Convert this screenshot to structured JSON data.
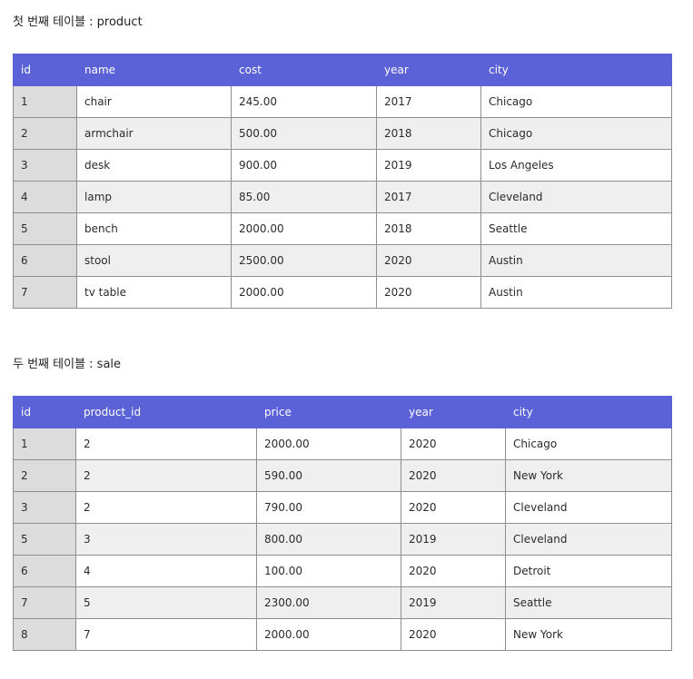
{
  "product_section": {
    "caption": "첫 번째 테이블 : product",
    "headers": [
      "id",
      "name",
      "cost",
      "year",
      "city"
    ],
    "rows": [
      [
        "1",
        "chair",
        "245.00",
        "2017",
        "Chicago"
      ],
      [
        "2",
        "armchair",
        "500.00",
        "2018",
        "Chicago"
      ],
      [
        "3",
        "desk",
        "900.00",
        "2019",
        "Los Angeles"
      ],
      [
        "4",
        "lamp",
        "85.00",
        "2017",
        "Cleveland"
      ],
      [
        "5",
        "bench",
        "2000.00",
        "2018",
        "Seattle"
      ],
      [
        "6",
        "stool",
        "2500.00",
        "2020",
        "Austin"
      ],
      [
        "7",
        "tv table",
        "2000.00",
        "2020",
        "Austin"
      ]
    ]
  },
  "sale_section": {
    "caption": "두 번째 테이블 : sale",
    "headers": [
      "id",
      "product_id",
      "price",
      "year",
      "city"
    ],
    "rows": [
      [
        "1",
        "2",
        "2000.00",
        "2020",
        "Chicago"
      ],
      [
        "2",
        "2",
        "590.00",
        "2020",
        "New York"
      ],
      [
        "3",
        "2",
        "790.00",
        "2020",
        "Cleveland"
      ],
      [
        "5",
        "3",
        "800.00",
        "2019",
        "Cleveland"
      ],
      [
        "6",
        "4",
        "100.00",
        "2020",
        "Detroit"
      ],
      [
        "7",
        "5",
        "2300.00",
        "2019",
        "Seattle"
      ],
      [
        "8",
        "7",
        "2000.00",
        "2020",
        "New York"
      ]
    ]
  },
  "colors": {
    "header_bg": "#5b61d6",
    "header_text": "#ffffff",
    "stripe_bg": "#efefef",
    "id_column_bg": "#dcdcdc",
    "border": "#8f8f8f"
  }
}
